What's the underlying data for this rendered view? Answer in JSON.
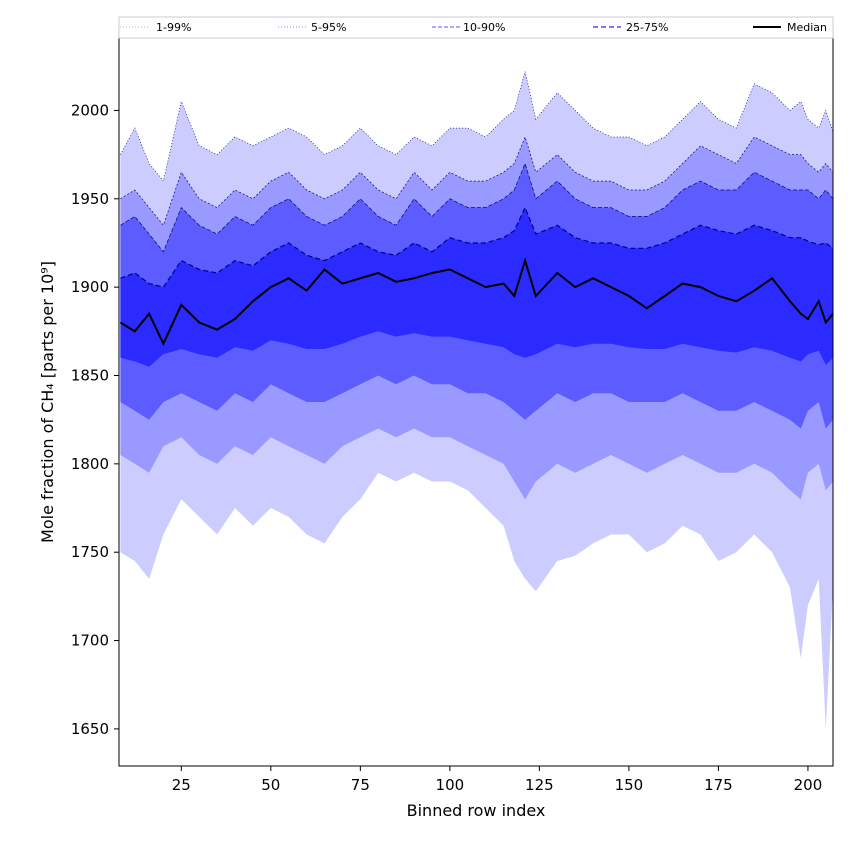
{
  "chart_data": {
    "type": "area",
    "xlabel": "Binned row index",
    "ylabel": "Mole fraction of CH₄ [parts per 10⁹]",
    "xlim": [
      7.6,
      207
    ],
    "ylim": [
      1629,
      2041
    ],
    "x_ticks": [
      25,
      50,
      75,
      100,
      125,
      150,
      175,
      200
    ],
    "y_ticks": [
      1650,
      1700,
      1750,
      1800,
      1850,
      1900,
      1950,
      2000
    ],
    "grid": false,
    "legend_placement": "top",
    "x": [
      8,
      12,
      16,
      20,
      25,
      30,
      35,
      40,
      45,
      50,
      55,
      60,
      65,
      70,
      75,
      80,
      85,
      90,
      95,
      100,
      105,
      110,
      115,
      118,
      121,
      124,
      130,
      135,
      140,
      145,
      150,
      155,
      160,
      165,
      170,
      175,
      180,
      185,
      190,
      195,
      198,
      200,
      203,
      205,
      207
    ],
    "series": [
      {
        "name": "1-99%",
        "style": "dotted",
        "lower": [
          1750,
          1745,
          1735,
          1760,
          1780,
          1770,
          1760,
          1775,
          1765,
          1775,
          1770,
          1760,
          1755,
          1770,
          1780,
          1795,
          1790,
          1795,
          1790,
          1790,
          1785,
          1775,
          1765,
          1745,
          1735,
          1728,
          1745,
          1748,
          1755,
          1760,
          1760,
          1750,
          1755,
          1765,
          1760,
          1745,
          1750,
          1760,
          1750,
          1730,
          1690,
          1720,
          1735,
          1650,
          1730
        ],
        "upper": [
          1975,
          1990,
          1970,
          1960,
          2005,
          1980,
          1975,
          1985,
          1980,
          1985,
          1990,
          1985,
          1975,
          1980,
          1990,
          1980,
          1975,
          1985,
          1980,
          1990,
          1990,
          1985,
          1995,
          2000,
          2022,
          1995,
          2010,
          2000,
          1990,
          1985,
          1985,
          1980,
          1985,
          1995,
          2005,
          1995,
          1990,
          2015,
          2010,
          2000,
          2005,
          1995,
          1990,
          2000,
          1988
        ]
      },
      {
        "name": "5-95%",
        "style": "dotted",
        "lower": [
          1805,
          1800,
          1795,
          1810,
          1815,
          1805,
          1800,
          1810,
          1805,
          1815,
          1810,
          1805,
          1800,
          1810,
          1815,
          1820,
          1815,
          1820,
          1815,
          1815,
          1810,
          1805,
          1800,
          1790,
          1780,
          1790,
          1800,
          1795,
          1800,
          1805,
          1800,
          1795,
          1800,
          1805,
          1800,
          1795,
          1795,
          1800,
          1795,
          1785,
          1780,
          1795,
          1800,
          1785,
          1790
        ],
        "upper": [
          1950,
          1955,
          1945,
          1935,
          1965,
          1950,
          1945,
          1955,
          1950,
          1960,
          1965,
          1955,
          1950,
          1955,
          1965,
          1955,
          1950,
          1965,
          1955,
          1965,
          1960,
          1960,
          1965,
          1970,
          1985,
          1965,
          1975,
          1965,
          1960,
          1960,
          1955,
          1955,
          1960,
          1970,
          1980,
          1975,
          1970,
          1985,
          1980,
          1975,
          1975,
          1970,
          1965,
          1970,
          1965
        ]
      },
      {
        "name": "10-90%",
        "style": "dashed",
        "lower": [
          1835,
          1830,
          1825,
          1835,
          1840,
          1835,
          1830,
          1840,
          1835,
          1845,
          1840,
          1835,
          1835,
          1840,
          1845,
          1850,
          1845,
          1850,
          1845,
          1845,
          1840,
          1840,
          1835,
          1830,
          1825,
          1830,
          1840,
          1835,
          1840,
          1840,
          1835,
          1835,
          1835,
          1840,
          1835,
          1830,
          1830,
          1835,
          1830,
          1825,
          1820,
          1830,
          1835,
          1820,
          1825
        ],
        "upper": [
          1935,
          1940,
          1930,
          1920,
          1945,
          1935,
          1930,
          1940,
          1935,
          1945,
          1950,
          1940,
          1935,
          1940,
          1950,
          1940,
          1935,
          1950,
          1940,
          1950,
          1945,
          1945,
          1950,
          1955,
          1970,
          1950,
          1960,
          1950,
          1945,
          1945,
          1940,
          1940,
          1945,
          1955,
          1960,
          1955,
          1955,
          1965,
          1960,
          1955,
          1955,
          1955,
          1950,
          1955,
          1950
        ]
      },
      {
        "name": "25-75%",
        "style": "dashed",
        "lower": [
          1860,
          1858,
          1855,
          1862,
          1865,
          1862,
          1860,
          1866,
          1864,
          1870,
          1868,
          1865,
          1865,
          1868,
          1872,
          1875,
          1872,
          1874,
          1872,
          1872,
          1870,
          1868,
          1866,
          1862,
          1860,
          1862,
          1868,
          1866,
          1868,
          1868,
          1866,
          1865,
          1865,
          1868,
          1866,
          1864,
          1863,
          1866,
          1864,
          1860,
          1858,
          1862,
          1864,
          1856,
          1860
        ],
        "upper": [
          1905,
          1908,
          1902,
          1900,
          1915,
          1910,
          1908,
          1915,
          1912,
          1920,
          1925,
          1918,
          1915,
          1920,
          1925,
          1920,
          1918,
          1925,
          1920,
          1928,
          1925,
          1925,
          1928,
          1932,
          1945,
          1930,
          1935,
          1928,
          1925,
          1925,
          1922,
          1922,
          1925,
          1930,
          1935,
          1932,
          1930,
          1935,
          1932,
          1928,
          1928,
          1926,
          1924,
          1925,
          1922
        ]
      },
      {
        "name": "Median",
        "style": "solid",
        "values": [
          1880,
          1875,
          1885,
          1868,
          1890,
          1880,
          1876,
          1882,
          1892,
          1900,
          1905,
          1898,
          1910,
          1902,
          1905,
          1908,
          1903,
          1905,
          1908,
          1910,
          1905,
          1900,
          1902,
          1895,
          1915,
          1895,
          1908,
          1900,
          1905,
          1900,
          1895,
          1888,
          1895,
          1902,
          1900,
          1895,
          1892,
          1898,
          1905,
          1892,
          1885,
          1882,
          1892,
          1880,
          1885
        ]
      }
    ],
    "colors": {
      "band_1_99": "#ccccff",
      "band_5_95": "#9999ff",
      "band_10_90": "#5c5cff",
      "band_25_75": "#2b2bff",
      "boundary_line": "#00008b",
      "median": "#000000"
    }
  }
}
